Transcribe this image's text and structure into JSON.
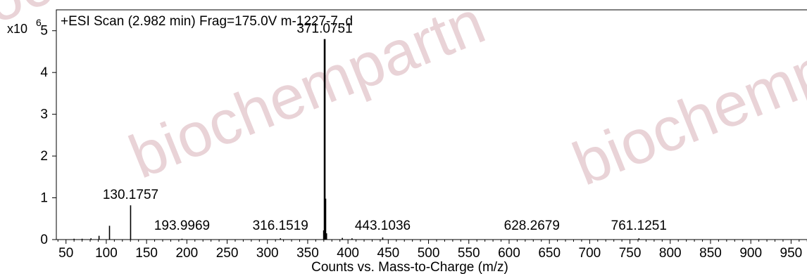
{
  "watermark": [
    "biochempartn",
    "biochemp",
    "biochemp"
  ],
  "chart_data": {
    "type": "bar",
    "title": "+ESI Scan (2.982 min) Frag=175.0V m-1227-7 .d",
    "xlabel": "Counts vs. Mass-to-Charge (m/z)",
    "y_multiplier": "x10",
    "y_exponent": "6",
    "xlim": [
      38,
      982
    ],
    "ylim": [
      0,
      5.5
    ],
    "x_ticks": [
      50,
      100,
      150,
      200,
      250,
      300,
      350,
      400,
      450,
      500,
      550,
      600,
      650,
      700,
      750,
      800,
      850,
      900,
      950
    ],
    "y_ticks": [
      0,
      1,
      2,
      3,
      4,
      5
    ],
    "grid": false,
    "peaks": [
      {
        "mz": 60,
        "intensity": 0.02
      },
      {
        "mz": 70,
        "intensity": 0.02
      },
      {
        "mz": 81,
        "intensity": 0.03
      },
      {
        "mz": 91,
        "intensity": 0.09
      },
      {
        "mz": 104,
        "intensity": 0.33
      },
      {
        "mz": 130.1757,
        "intensity": 0.82
      },
      {
        "mz": 193.9969,
        "intensity": 0.02
      },
      {
        "mz": 316.1519,
        "intensity": 0.03
      },
      {
        "mz": 369.8,
        "intensity": 0.22
      },
      {
        "mz": 371.0751,
        "intensity": 4.8
      },
      {
        "mz": 372.3,
        "intensity": 0.98
      },
      {
        "mz": 373.4,
        "intensity": 0.15
      },
      {
        "mz": 393,
        "intensity": 0.04
      },
      {
        "mz": 405,
        "intensity": 0.03
      },
      {
        "mz": 443.1036,
        "intensity": 0.05
      },
      {
        "mz": 628.2679,
        "intensity": 0.01
      },
      {
        "mz": 761.1251,
        "intensity": 0.03
      }
    ],
    "annotations": [
      {
        "label": "371.0751",
        "mz": 371.0751,
        "intensity": 4.8
      },
      {
        "label": "130.1757",
        "mz": 130.1757,
        "intensity": 0.82
      },
      {
        "label": "193.9969",
        "mz": 193.9969,
        "intensity": 0.02
      },
      {
        "label": "316.1519",
        "mz": 316.1519,
        "intensity": 0.03
      },
      {
        "label": "443.1036",
        "mz": 443.1036,
        "intensity": 0.05
      },
      {
        "label": "628.2679",
        "mz": 628.2679,
        "intensity": 0.01
      },
      {
        "label": "761.1251",
        "mz": 761.1251,
        "intensity": 0.03
      }
    ]
  }
}
